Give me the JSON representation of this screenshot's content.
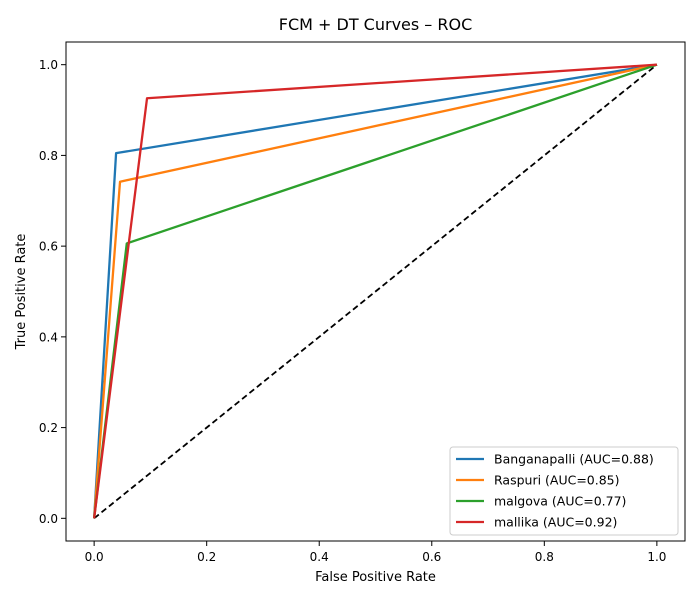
{
  "chart_data": {
    "type": "line",
    "title": "FCM + DT Curves – ROC",
    "xlabel": "False Positive Rate",
    "ylabel": "True Positive Rate",
    "xlim": [
      -0.05,
      1.05
    ],
    "ylim": [
      -0.05,
      1.05
    ],
    "xticks": [
      0.0,
      0.2,
      0.4,
      0.6,
      0.8,
      1.0
    ],
    "yticks": [
      0.0,
      0.2,
      0.4,
      0.6,
      0.8,
      1.0
    ],
    "xtick_labels": [
      "0.0",
      "0.2",
      "0.4",
      "0.6",
      "0.8",
      "1.0"
    ],
    "ytick_labels": [
      "0.0",
      "0.2",
      "0.4",
      "0.6",
      "0.8",
      "1.0"
    ],
    "grid": false,
    "legend_position": "bottom-right",
    "series": [
      {
        "name": "Banganapalli (AUC=0.88)",
        "color": "#1f77b4",
        "x": [
          0.0,
          0.039,
          1.0
        ],
        "y": [
          0.0,
          0.805,
          1.0
        ]
      },
      {
        "name": "Raspuri (AUC=0.85)",
        "color": "#ff7f0e",
        "x": [
          0.0,
          0.046,
          1.0
        ],
        "y": [
          0.0,
          0.742,
          1.0
        ]
      },
      {
        "name": "malgova (AUC=0.77)",
        "color": "#2ca02c",
        "x": [
          0.0,
          0.058,
          1.0
        ],
        "y": [
          0.0,
          0.606,
          1.0
        ]
      },
      {
        "name": "mallika (AUC=0.92)",
        "color": "#d62728",
        "x": [
          0.0,
          0.094,
          1.0
        ],
        "y": [
          0.0,
          0.926,
          1.0
        ]
      }
    ],
    "reference_line": {
      "x": [
        0.0,
        1.0
      ],
      "y": [
        0.0,
        1.0
      ],
      "color": "#000000",
      "style": "dashed"
    }
  }
}
